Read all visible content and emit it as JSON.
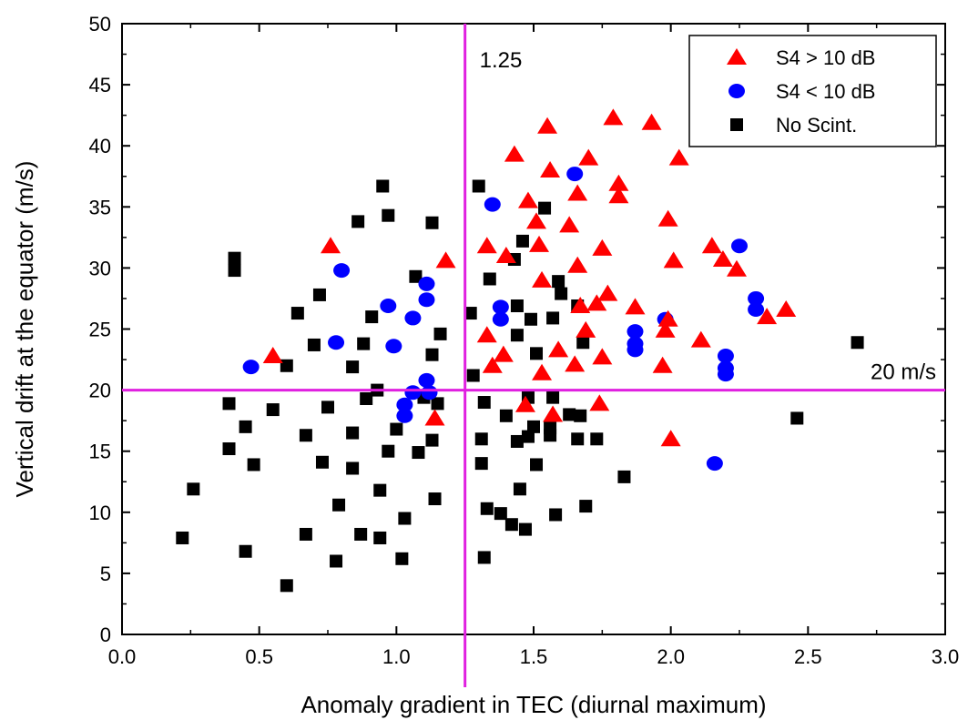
{
  "chart_data": {
    "type": "scatter",
    "xlabel": "Anomaly gradient in TEC (diurnal maximum)",
    "ylabel": "Vertical drift at the equator (m/s)",
    "xlim": [
      0.0,
      3.0
    ],
    "ylim": [
      0,
      50
    ],
    "x_ticks": [
      "0.0",
      "0.5",
      "1.0",
      "1.5",
      "2.0",
      "2.5",
      "3.0"
    ],
    "y_ticks": [
      "0",
      "5",
      "10",
      "15",
      "20",
      "25",
      "30",
      "35",
      "40",
      "45",
      "50"
    ],
    "grid": false,
    "legend_position": "top-right",
    "reference_lines": [
      {
        "orientation": "vertical",
        "value": 1.25,
        "label": "1.25",
        "color": "#e020e0"
      },
      {
        "orientation": "horizontal",
        "value": 20,
        "label": "20 m/s",
        "color": "#e020e0"
      }
    ],
    "series": [
      {
        "name": "S4 > 10 dB",
        "marker": "triangle",
        "color": "#ff0000",
        "points": [
          [
            0.55,
            22.8
          ],
          [
            0.76,
            31.8
          ],
          [
            1.14,
            17.7
          ],
          [
            1.18,
            30.6
          ],
          [
            1.33,
            31.8
          ],
          [
            1.33,
            24.5
          ],
          [
            1.35,
            22.0
          ],
          [
            1.39,
            22.9
          ],
          [
            1.4,
            31.0
          ],
          [
            1.43,
            39.3
          ],
          [
            1.47,
            18.8
          ],
          [
            1.48,
            35.5
          ],
          [
            1.51,
            33.8
          ],
          [
            1.52,
            31.9
          ],
          [
            1.53,
            29.0
          ],
          [
            1.53,
            21.4
          ],
          [
            1.55,
            41.6
          ],
          [
            1.56,
            38.0
          ],
          [
            1.57,
            18.0
          ],
          [
            1.59,
            23.3
          ],
          [
            1.63,
            33.5
          ],
          [
            1.65,
            22.1
          ],
          [
            1.66,
            36.1
          ],
          [
            1.66,
            30.2
          ],
          [
            1.67,
            26.9
          ],
          [
            1.69,
            24.9
          ],
          [
            1.7,
            39.0
          ],
          [
            1.73,
            27.1
          ],
          [
            1.74,
            18.9
          ],
          [
            1.75,
            22.7
          ],
          [
            1.75,
            31.6
          ],
          [
            1.77,
            27.9
          ],
          [
            1.79,
            42.3
          ],
          [
            1.81,
            36.9
          ],
          [
            1.81,
            35.9
          ],
          [
            1.87,
            26.8
          ],
          [
            1.93,
            41.9
          ],
          [
            1.97,
            22.0
          ],
          [
            1.98,
            24.9
          ],
          [
            1.99,
            25.8
          ],
          [
            1.99,
            34.0
          ],
          [
            2.0,
            16.0
          ],
          [
            2.01,
            30.6
          ],
          [
            2.03,
            39.0
          ],
          [
            2.11,
            24.1
          ],
          [
            2.15,
            31.8
          ],
          [
            2.19,
            30.7
          ],
          [
            2.24,
            29.9
          ],
          [
            2.35,
            26.0
          ],
          [
            2.42,
            26.6
          ]
        ]
      },
      {
        "name": "S4 < 10 dB",
        "marker": "circle",
        "color": "#0000ff",
        "points": [
          [
            0.47,
            21.9
          ],
          [
            0.78,
            23.9
          ],
          [
            0.8,
            29.8
          ],
          [
            0.97,
            26.9
          ],
          [
            0.99,
            23.6
          ],
          [
            1.03,
            18.8
          ],
          [
            1.03,
            17.9
          ],
          [
            1.06,
            25.9
          ],
          [
            1.06,
            19.8
          ],
          [
            1.11,
            28.7
          ],
          [
            1.11,
            27.4
          ],
          [
            1.11,
            20.8
          ],
          [
            1.12,
            19.8
          ],
          [
            1.35,
            35.2
          ],
          [
            1.38,
            26.8
          ],
          [
            1.38,
            25.8
          ],
          [
            1.65,
            37.7
          ],
          [
            1.87,
            24.8
          ],
          [
            1.87,
            23.8
          ],
          [
            1.87,
            23.3
          ],
          [
            1.98,
            25.8
          ],
          [
            2.16,
            14.0
          ],
          [
            2.2,
            22.8
          ],
          [
            2.2,
            21.8
          ],
          [
            2.2,
            21.3
          ],
          [
            2.25,
            31.8
          ],
          [
            2.31,
            27.5
          ],
          [
            2.31,
            26.6
          ]
        ]
      },
      {
        "name": "No Scint.",
        "marker": "square",
        "color": "#000000",
        "points": [
          [
            0.22,
            7.9
          ],
          [
            0.26,
            11.9
          ],
          [
            0.39,
            18.9
          ],
          [
            0.39,
            15.2
          ],
          [
            0.41,
            30.8
          ],
          [
            0.41,
            29.8
          ],
          [
            0.45,
            6.8
          ],
          [
            0.45,
            17.0
          ],
          [
            0.48,
            13.9
          ],
          [
            0.55,
            18.4
          ],
          [
            0.6,
            4.0
          ],
          [
            0.6,
            22.0
          ],
          [
            0.64,
            26.3
          ],
          [
            0.67,
            8.2
          ],
          [
            0.67,
            16.3
          ],
          [
            0.7,
            23.7
          ],
          [
            0.72,
            27.8
          ],
          [
            0.73,
            14.1
          ],
          [
            0.75,
            18.6
          ],
          [
            0.78,
            6.0
          ],
          [
            0.79,
            10.6
          ],
          [
            0.84,
            13.6
          ],
          [
            0.84,
            21.9
          ],
          [
            0.84,
            16.5
          ],
          [
            0.86,
            33.8
          ],
          [
            0.87,
            8.2
          ],
          [
            0.88,
            23.8
          ],
          [
            0.89,
            19.3
          ],
          [
            0.91,
            26.0
          ],
          [
            0.93,
            20.0
          ],
          [
            0.94,
            7.9
          ],
          [
            0.94,
            11.8
          ],
          [
            0.95,
            36.7
          ],
          [
            0.97,
            34.3
          ],
          [
            0.97,
            15.0
          ],
          [
            1.0,
            16.8
          ],
          [
            1.02,
            6.2
          ],
          [
            1.03,
            9.5
          ],
          [
            1.07,
            29.3
          ],
          [
            1.08,
            14.9
          ],
          [
            1.1,
            19.4
          ],
          [
            1.13,
            33.7
          ],
          [
            1.13,
            22.9
          ],
          [
            1.13,
            15.9
          ],
          [
            1.14,
            11.1
          ],
          [
            1.15,
            18.9
          ],
          [
            1.16,
            24.6
          ],
          [
            1.27,
            26.3
          ],
          [
            1.28,
            21.2
          ],
          [
            1.3,
            36.7
          ],
          [
            1.31,
            16.0
          ],
          [
            1.31,
            14.0
          ],
          [
            1.32,
            19.0
          ],
          [
            1.32,
            6.3
          ],
          [
            1.33,
            10.3
          ],
          [
            1.34,
            29.1
          ],
          [
            1.38,
            9.9
          ],
          [
            1.4,
            17.9
          ],
          [
            1.42,
            9.0
          ],
          [
            1.43,
            30.7
          ],
          [
            1.44,
            24.5
          ],
          [
            1.44,
            26.9
          ],
          [
            1.44,
            15.8
          ],
          [
            1.45,
            11.9
          ],
          [
            1.46,
            32.2
          ],
          [
            1.47,
            8.6
          ],
          [
            1.48,
            16.2
          ],
          [
            1.48,
            19.4
          ],
          [
            1.49,
            25.8
          ],
          [
            1.5,
            17.0
          ],
          [
            1.51,
            23.0
          ],
          [
            1.51,
            13.9
          ],
          [
            1.54,
            34.9
          ],
          [
            1.56,
            16.9
          ],
          [
            1.56,
            16.3
          ],
          [
            1.57,
            25.9
          ],
          [
            1.57,
            19.4
          ],
          [
            1.58,
            9.8
          ],
          [
            1.59,
            28.9
          ],
          [
            1.6,
            27.9
          ],
          [
            1.63,
            18.0
          ],
          [
            1.66,
            26.9
          ],
          [
            1.66,
            16.0
          ],
          [
            1.67,
            17.9
          ],
          [
            1.68,
            23.9
          ],
          [
            1.69,
            10.5
          ],
          [
            1.73,
            16.0
          ],
          [
            1.83,
            12.9
          ],
          [
            2.46,
            17.7
          ],
          [
            2.68,
            23.9
          ]
        ]
      }
    ]
  }
}
